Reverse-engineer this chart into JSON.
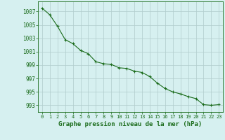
{
  "x": [
    0,
    1,
    2,
    3,
    4,
    5,
    6,
    7,
    8,
    9,
    10,
    11,
    12,
    13,
    14,
    15,
    16,
    17,
    18,
    19,
    20,
    21,
    22,
    23
  ],
  "y": [
    1007.5,
    1006.5,
    1004.8,
    1002.8,
    1002.2,
    1001.2,
    1000.7,
    999.5,
    999.2,
    999.1,
    998.6,
    998.5,
    998.1,
    997.9,
    997.3,
    996.3,
    995.5,
    995.0,
    994.7,
    994.3,
    994.0,
    993.1,
    993.0,
    993.1
  ],
  "line_color": "#1a6b1a",
  "marker": "+",
  "marker_size": 3,
  "marker_linewidth": 0.8,
  "bg_color": "#d6f0f0",
  "grid_color": "#b0cccc",
  "xlabel": "Graphe pression niveau de la mer (hPa)",
  "xlabel_fontsize": 6.5,
  "xlabel_color": "#1a6b1a",
  "ytick_labels": [
    993,
    995,
    997,
    999,
    1001,
    1003,
    1005,
    1007
  ],
  "xtick_labels": [
    0,
    1,
    2,
    3,
    4,
    5,
    6,
    7,
    8,
    9,
    10,
    11,
    12,
    13,
    14,
    15,
    16,
    17,
    18,
    19,
    20,
    21,
    22,
    23
  ],
  "ylim": [
    992.0,
    1008.5
  ],
  "xlim": [
    -0.5,
    23.5
  ],
  "tick_color": "#1a6b1a",
  "ytick_fontsize": 5.5,
  "xtick_fontsize": 5.0,
  "axis_color": "#1a6b1a",
  "line_width": 0.8
}
